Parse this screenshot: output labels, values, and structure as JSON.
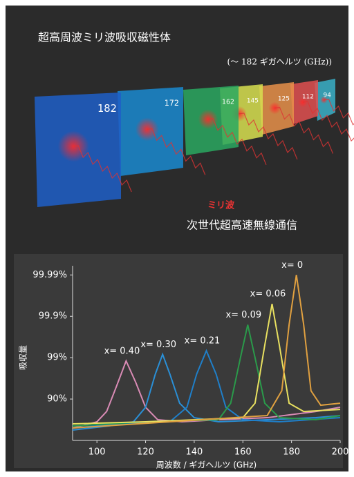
{
  "illustration": {
    "title": "超高周波ミリ波吸収磁性体",
    "subtitle": "(～ 182 ギガヘルツ (GHz))",
    "panels": [
      "182",
      "172",
      "162",
      "145",
      "125",
      "112",
      "94"
    ],
    "wave_label": "ミリ波",
    "caption": "次世代超高速無線通信"
  },
  "chart_data": {
    "type": "line",
    "x_label": "周波数 / ギガヘルツ (GHz)",
    "y_label": "吸収量",
    "xlim": [
      90,
      200
    ],
    "xticks": [
      100,
      120,
      140,
      160,
      180,
      200
    ],
    "ylim": [
      0,
      99.994
    ],
    "yscale": "absorption-log",
    "yticks": [
      {
        "value": 90,
        "label": "90%"
      },
      {
        "value": 99,
        "label": "99%"
      },
      {
        "value": 99.9,
        "label": "99.9%"
      },
      {
        "value": 99.99,
        "label": "99.99%"
      }
    ],
    "series": [
      {
        "name": "x= 0.40",
        "color": "#d98bb5",
        "x": [
          90,
          100,
          104,
          108,
          112,
          116,
          120,
          125,
          135,
          150,
          170,
          190,
          200
        ],
        "values": [
          49.9,
          64.5,
          80.0,
          95.0,
          98.8,
          96.0,
          84.2,
          68.4,
          64.5,
          68.4,
          71.8,
          80.0,
          84.2
        ]
      },
      {
        "name": "x= 0.30",
        "color": "#2a8fd6",
        "x": [
          90,
          105,
          115,
          120,
          124,
          127,
          130,
          134,
          140,
          150,
          170,
          190,
          200
        ],
        "values": [
          43.8,
          55.3,
          64.5,
          84.2,
          97.5,
          99.17,
          97.5,
          87.4,
          71.8,
          64.5,
          68.4,
          71.8,
          74.9
        ]
      },
      {
        "name": "x= 0.21",
        "color": "#1f7fc9",
        "x": [
          90,
          110,
          130,
          137,
          141,
          145,
          149,
          153,
          160,
          175,
          200
        ],
        "values": [
          49.9,
          60.2,
          64.5,
          84.2,
          97.5,
          99.32,
          97.5,
          84.2,
          68.4,
          64.5,
          71.8
        ]
      },
      {
        "name": "x= 0.09",
        "color": "#2a9a4a",
        "x": [
          90,
          120,
          150,
          155,
          159,
          162,
          165,
          169,
          175,
          190,
          200
        ],
        "values": [
          55.3,
          64.5,
          68.4,
          87.4,
          99,
          99.84,
          99,
          87.4,
          71.8,
          68.4,
          74.9
        ]
      },
      {
        "name": "x= 0.06",
        "color": "#e8e060",
        "x": [
          90,
          120,
          160,
          165,
          169,
          172,
          175,
          179,
          185,
          200
        ],
        "values": [
          60.2,
          64.5,
          71.8,
          87.4,
          99.5,
          99.95,
          99.5,
          87.4,
          80.0,
          82.2
        ]
      },
      {
        "name": "x= 0",
        "color": "#e0a040",
        "x": [
          90,
          130,
          170,
          176,
          179,
          182,
          185,
          188,
          192,
          200
        ],
        "values": [
          49.9,
          64.5,
          74.9,
          93.7,
          99.84,
          99.99,
          99.84,
          93.7,
          85.9,
          87.4
        ]
      }
    ]
  }
}
